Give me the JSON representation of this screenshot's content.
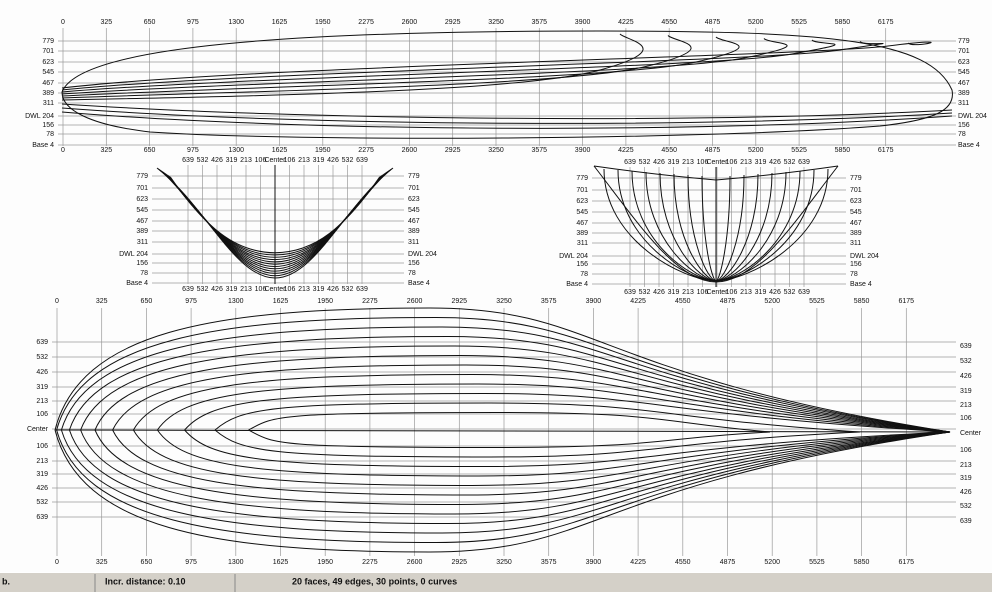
{
  "profile": {
    "stations": [
      "0",
      "325",
      "650",
      "975",
      "1300",
      "1625",
      "1950",
      "2275",
      "2600",
      "2925",
      "3250",
      "3575",
      "3900",
      "4225",
      "4550",
      "4875",
      "5200",
      "5525",
      "5850",
      "6175"
    ],
    "heights": [
      "779",
      "701",
      "623",
      "545",
      "467",
      "389",
      "311",
      "DWL 204",
      "156",
      "78",
      "Base 4"
    ]
  },
  "body_plan": {
    "offsets": [
      "639",
      "532",
      "426",
      "319",
      "213",
      "106",
      "Center",
      "106",
      "213",
      "319",
      "426",
      "532",
      "639"
    ]
  },
  "plan": {
    "offsets": [
      "639",
      "532",
      "426",
      "319",
      "213",
      "106",
      "Center",
      "106",
      "213",
      "319",
      "426",
      "532",
      "639"
    ]
  },
  "status": {
    "left": "b.",
    "increment": "Incr. distance: 0.10",
    "summary": "20 faces, 49 edges, 30 points, 0 curves"
  }
}
